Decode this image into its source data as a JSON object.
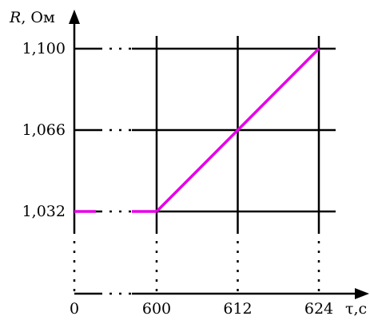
{
  "chart_data": {
    "type": "line",
    "ylabel_var": "R",
    "ylabel_unit": ", Ом",
    "xlabel": "τ,с",
    "origin_label": "0",
    "x_ticks": [
      "600",
      "612",
      "624"
    ],
    "x_tick_values": [
      600,
      612,
      624
    ],
    "y_ticks": [
      "1,032",
      "1,066",
      "1,100"
    ],
    "y_tick_values": [
      1.032,
      1.066,
      1.1
    ],
    "xlim": [
      588,
      630
    ],
    "ylim": [
      1.0,
      1.11
    ],
    "series": [
      {
        "x": [
          600,
          624
        ],
        "y": [
          1.032,
          1.1
        ]
      }
    ],
    "baseline_segment": {
      "y": 1.032
    },
    "grid": true,
    "axis_breaks": true,
    "line_color": "#e600e6",
    "grid_color": "#000000"
  }
}
